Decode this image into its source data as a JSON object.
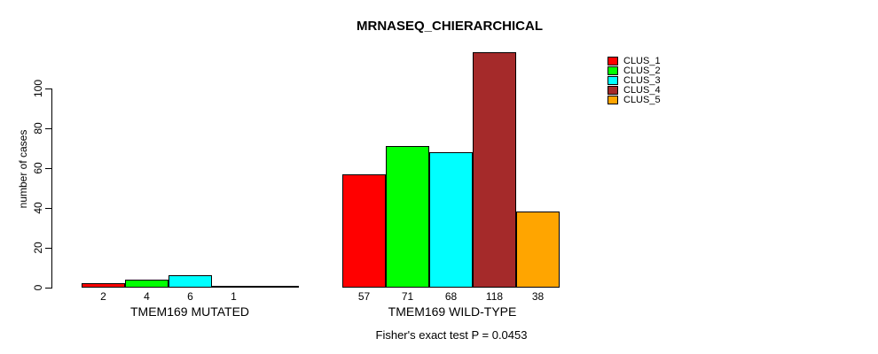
{
  "chart_data": {
    "type": "bar",
    "title": "MRNASEQ_CHIERARCHICAL",
    "ylabel": "number of cases",
    "ylim": [
      0,
      100
    ],
    "yticks": [
      0,
      20,
      40,
      60,
      80,
      100
    ],
    "grid": false,
    "legend": {
      "position": "right",
      "entries": [
        {
          "label": "CLUS_1",
          "color": "#FF0000"
        },
        {
          "label": "CLUS_2",
          "color": "#00FF00"
        },
        {
          "label": "CLUS_3",
          "color": "#00FFFF"
        },
        {
          "label": "CLUS_4",
          "color": "#A52A2A"
        },
        {
          "label": "CLUS_5",
          "color": "#FFA500"
        }
      ]
    },
    "groups": [
      {
        "label": "TMEM169 MUTATED",
        "values": [
          2,
          4,
          6,
          1,
          0
        ],
        "value_labels": [
          "2",
          "4",
          "6",
          "1",
          ""
        ]
      },
      {
        "label": "TMEM169 WILD-TYPE",
        "values": [
          57,
          71,
          68,
          118,
          38
        ],
        "value_labels": [
          "57",
          "71",
          "68",
          "118",
          "38"
        ]
      }
    ],
    "footer": "Fisher's exact test P = 0.0453"
  }
}
